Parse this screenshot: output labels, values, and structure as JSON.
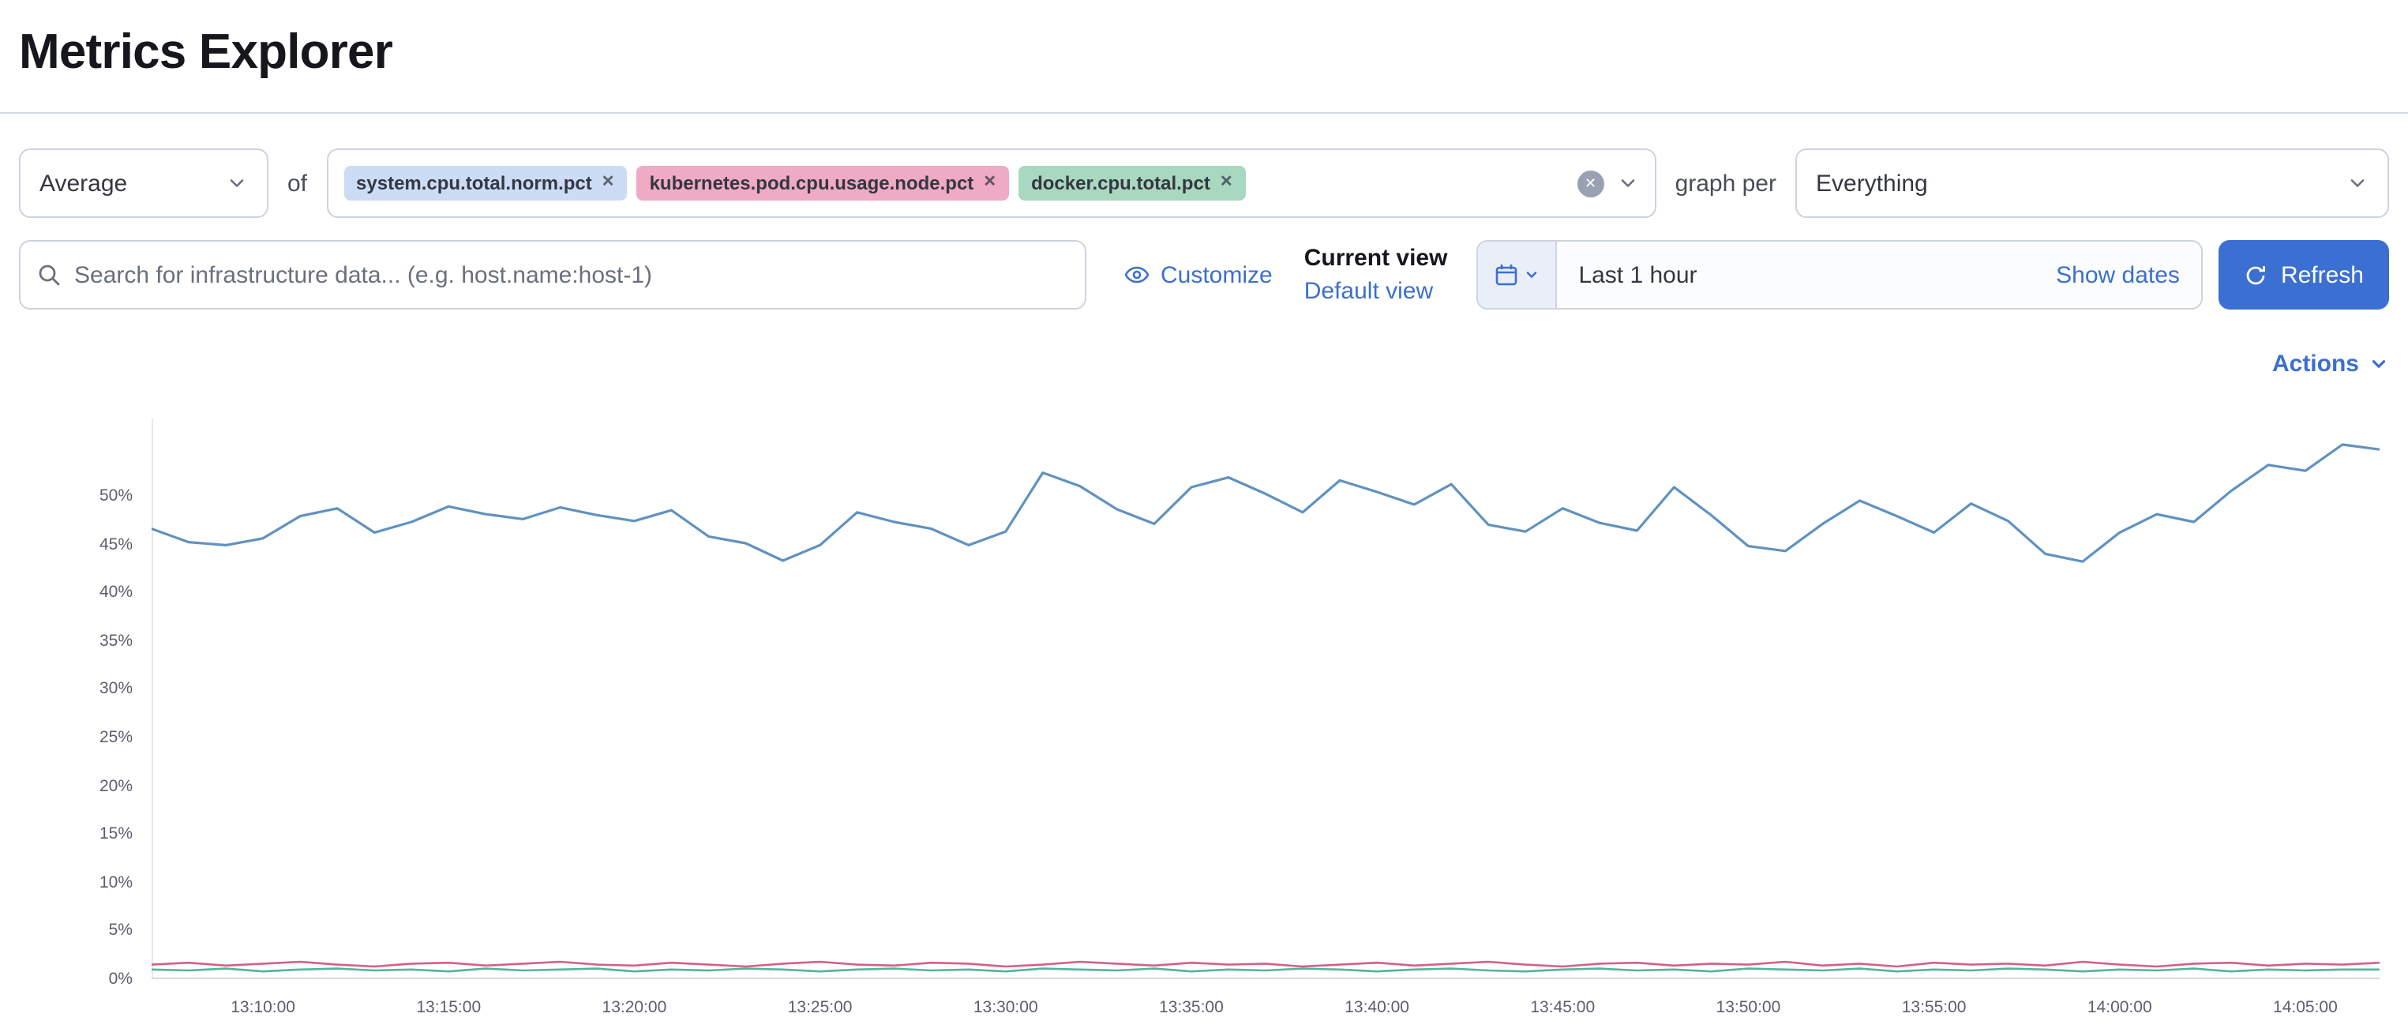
{
  "page": {
    "title": "Metrics Explorer"
  },
  "colors": {
    "accent": "#3b6fd1",
    "border": "#cdd3df",
    "series_blue": "#6092C0",
    "series_pink": "#D36086",
    "series_green": "#54B399"
  },
  "toolbar": {
    "aggregation": {
      "value": "Average"
    },
    "of_label": "of",
    "metrics": [
      {
        "label": "system.cpu.total.norm.pct",
        "bg": "#ccdcf5",
        "fg": "#343741"
      },
      {
        "label": "kubernetes.pod.cpu.usage.node.pct",
        "bg": "#efaac4",
        "fg": "#343741"
      },
      {
        "label": "docker.cpu.total.pct",
        "bg": "#a8d8bf",
        "fg": "#343741"
      }
    ],
    "graph_per_label": "graph per",
    "group_by": {
      "value": "Everything"
    }
  },
  "search": {
    "placeholder": "Search for infrastructure data... (e.g. host.name:host-1)"
  },
  "view_controls": {
    "customize_label": "Customize",
    "current_view_label": "Current view",
    "view_name": "Default view"
  },
  "datepicker": {
    "value": "Last 1 hour",
    "show_dates_label": "Show dates",
    "refresh_label": "Refresh"
  },
  "actions_label": "Actions",
  "chart_data": {
    "type": "line",
    "title": "",
    "xlabel": "",
    "ylabel": "",
    "x_range": [
      "13:07:00",
      "14:07:00"
    ],
    "x_ticks": [
      "13:10:00",
      "13:15:00",
      "13:20:00",
      "13:25:00",
      "13:30:00",
      "13:35:00",
      "13:40:00",
      "13:45:00",
      "13:50:00",
      "13:55:00",
      "14:00:00",
      "14:05:00"
    ],
    "y_ticks": [
      0,
      5,
      10,
      15,
      20,
      25,
      30,
      35,
      40,
      45,
      50
    ],
    "ylim": [
      0,
      58
    ],
    "grid": false,
    "legend": "none",
    "series": [
      {
        "name": "system.cpu.total.norm.pct",
        "color": "#6092C0",
        "width": 1.6,
        "values": [
          46.6,
          45.2,
          44.9,
          45.6,
          47.9,
          48.7,
          46.2,
          47.3,
          48.9,
          48.1,
          47.6,
          48.8,
          48.0,
          47.4,
          48.5,
          45.8,
          45.1,
          43.3,
          44.9,
          48.3,
          47.3,
          46.6,
          44.9,
          46.3,
          52.4,
          51.0,
          48.6,
          47.1,
          50.9,
          51.9,
          50.2,
          48.3,
          51.6,
          50.4,
          49.1,
          51.2,
          47.0,
          46.3,
          48.7,
          47.2,
          46.4,
          50.9,
          48.0,
          44.8,
          44.3,
          47.1,
          49.5,
          47.9,
          46.2,
          49.2,
          47.4,
          44.0,
          43.2,
          46.2,
          48.1,
          47.3,
          50.5,
          53.2,
          52.6,
          55.3,
          54.8
        ]
      },
      {
        "name": "docker.cpu.total.pct",
        "color": "#54B399",
        "width": 1.3,
        "values": [
          1.0,
          0.9,
          1.1,
          0.8,
          1.0,
          1.1,
          0.9,
          1.0,
          0.8,
          1.1,
          0.9,
          1.0,
          1.1,
          0.8,
          1.0,
          0.9,
          1.1,
          1.0,
          0.8,
          1.0,
          1.1,
          0.9,
          1.0,
          0.8,
          1.1,
          1.0,
          0.9,
          1.1,
          0.8,
          1.0,
          0.9,
          1.1,
          1.0,
          0.8,
          1.0,
          1.1,
          0.9,
          0.8,
          1.0,
          1.1,
          0.9,
          1.0,
          0.8,
          1.1,
          1.0,
          0.9,
          1.1,
          0.8,
          1.0,
          0.9,
          1.1,
          1.0,
          0.8,
          1.0,
          0.9,
          1.1,
          0.8,
          1.0,
          0.9,
          1.0,
          1.0
        ]
      },
      {
        "name": "kubernetes.pod.cpu.usage.node.pct",
        "color": "#D36086",
        "width": 1.3,
        "values": [
          1.5,
          1.7,
          1.4,
          1.6,
          1.8,
          1.5,
          1.3,
          1.6,
          1.7,
          1.4,
          1.6,
          1.8,
          1.5,
          1.4,
          1.7,
          1.5,
          1.3,
          1.6,
          1.8,
          1.5,
          1.4,
          1.7,
          1.6,
          1.3,
          1.5,
          1.8,
          1.6,
          1.4,
          1.7,
          1.5,
          1.6,
          1.3,
          1.5,
          1.7,
          1.4,
          1.6,
          1.8,
          1.5,
          1.3,
          1.6,
          1.7,
          1.4,
          1.6,
          1.5,
          1.8,
          1.4,
          1.6,
          1.3,
          1.7,
          1.5,
          1.6,
          1.4,
          1.8,
          1.5,
          1.3,
          1.6,
          1.7,
          1.4,
          1.6,
          1.5,
          1.7
        ]
      }
    ]
  }
}
